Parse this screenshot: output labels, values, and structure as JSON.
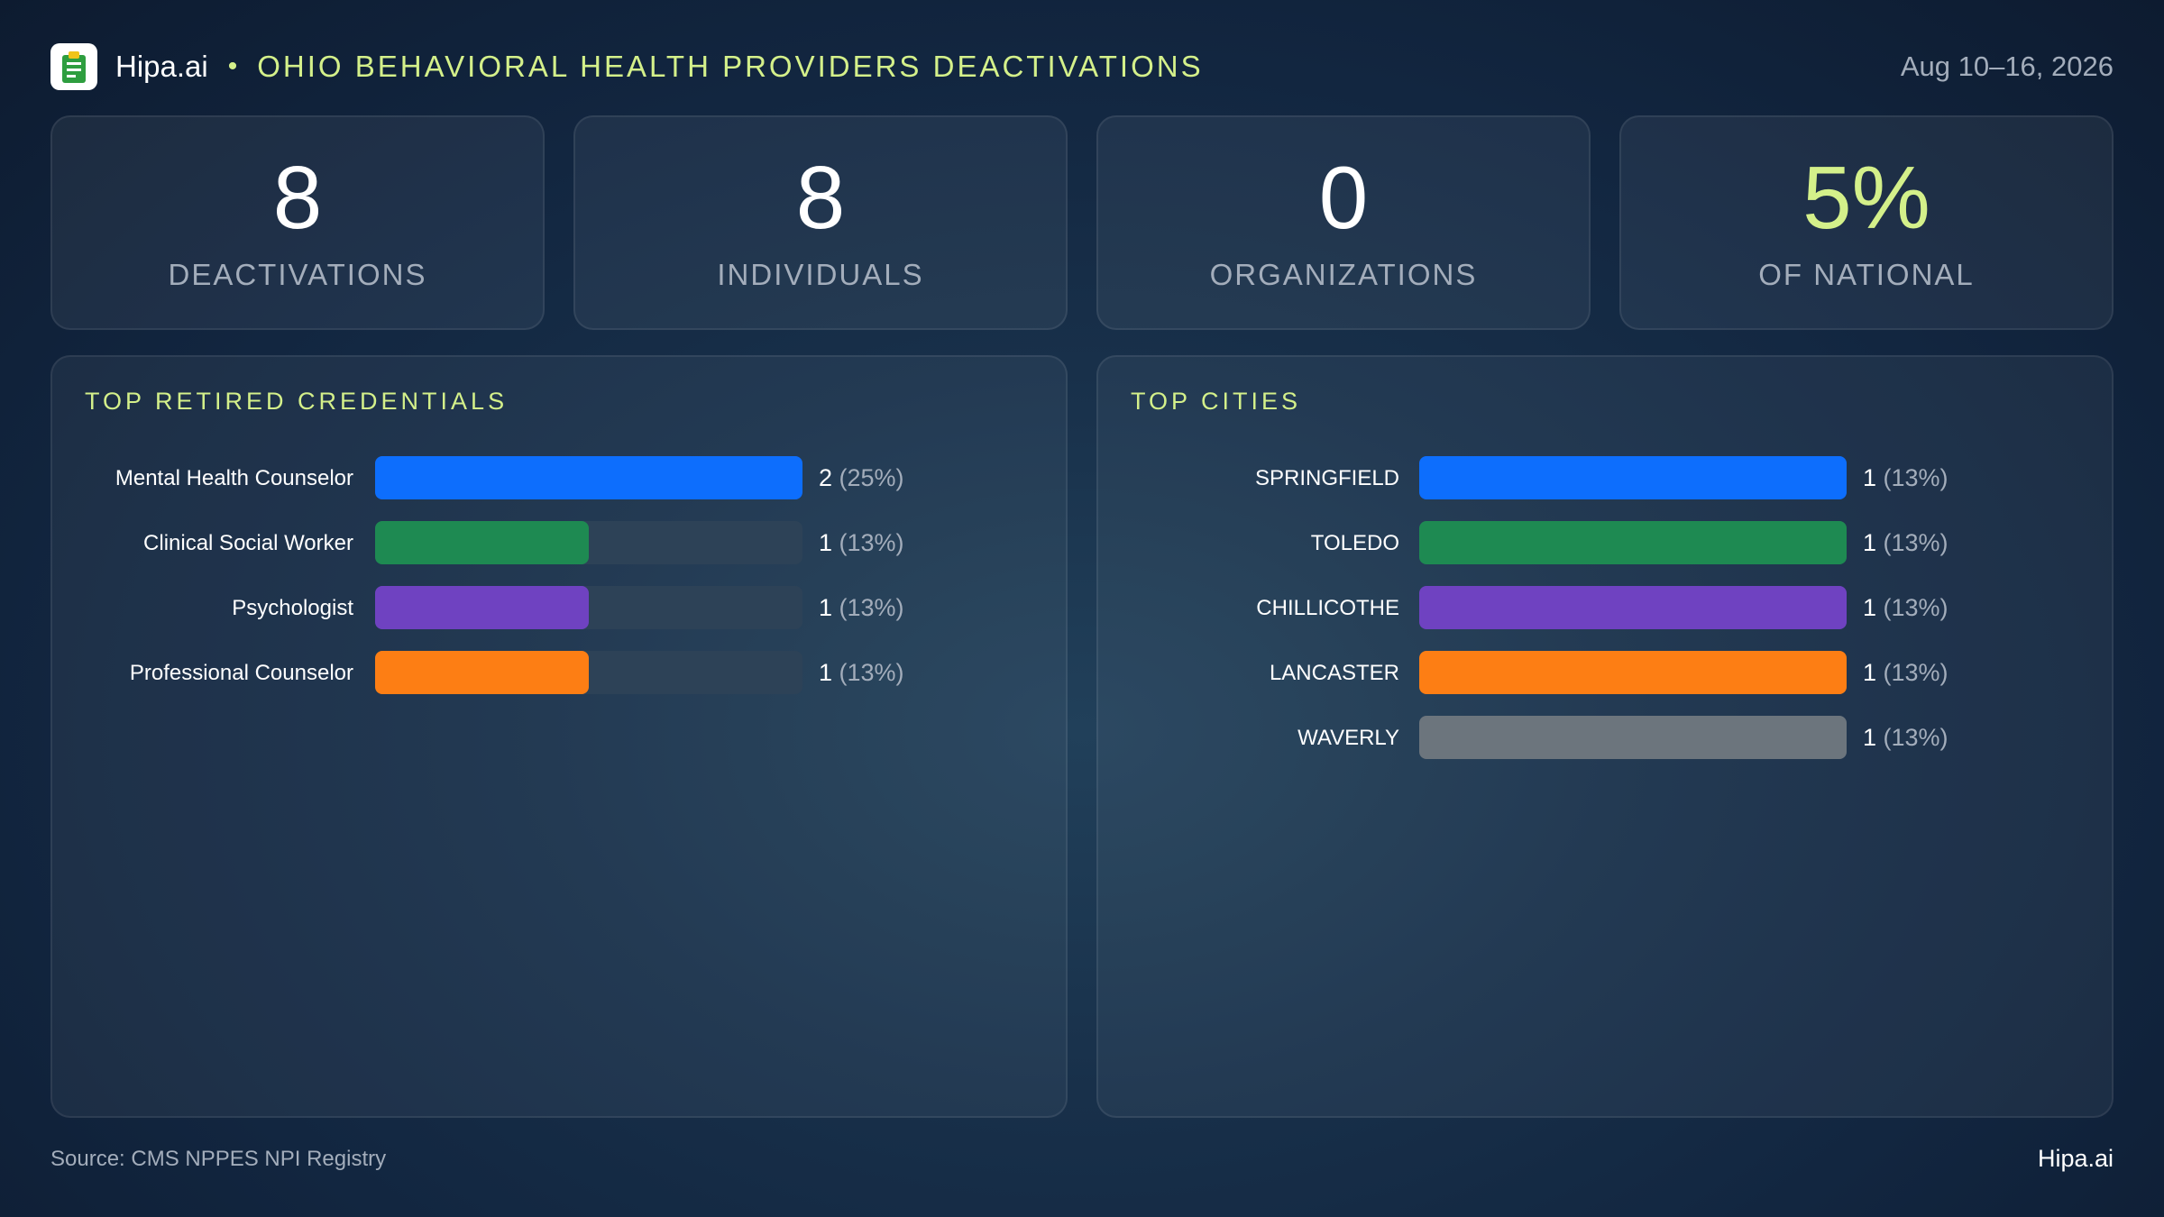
{
  "header": {
    "brand": "Hipa.ai",
    "separator": "•",
    "title": "OHIO BEHAVIORAL HEALTH PROVIDERS DEACTIVATIONS",
    "date": "Aug 10–16, 2026",
    "logo_icon": "clipboard-icon"
  },
  "stats": [
    {
      "value": "8",
      "label": "DEACTIVATIONS"
    },
    {
      "value": "8",
      "label": "INDIVIDUALS"
    },
    {
      "value": "0",
      "label": "ORGANIZATIONS"
    },
    {
      "value": "5%",
      "label": "OF NATIONAL"
    }
  ],
  "colors": {
    "blue": "#0d6efd",
    "green": "#1e8a52",
    "purple": "#6f42c1",
    "orange": "#fd7e14",
    "gray": "#6c757d",
    "accent": "#d4f08a",
    "track": "#2d4257"
  },
  "chart_data": [
    {
      "type": "bar",
      "orientation": "horizontal",
      "title": "TOP RETIRED CREDENTIALS",
      "categories": [
        "Mental Health Counselor",
        "Clinical Social Worker",
        "Psychologist",
        "Professional Counselor"
      ],
      "values": [
        2,
        1,
        1,
        1
      ],
      "labels": [
        {
          "count": "2",
          "pct": "(25%)"
        },
        {
          "count": "1",
          "pct": "(13%)"
        },
        {
          "count": "1",
          "pct": "(13%)"
        },
        {
          "count": "1",
          "pct": "(13%)"
        }
      ],
      "xlim": [
        0,
        2
      ],
      "colors": [
        "#0d6efd",
        "#1e8a52",
        "#6f42c1",
        "#fd7e14"
      ]
    },
    {
      "type": "bar",
      "orientation": "horizontal",
      "title": "TOP CITIES",
      "categories": [
        "SPRINGFIELD",
        "TOLEDO",
        "CHILLICOTHE",
        "LANCASTER",
        "WAVERLY"
      ],
      "values": [
        1,
        1,
        1,
        1,
        1
      ],
      "labels": [
        {
          "count": "1",
          "pct": "(13%)"
        },
        {
          "count": "1",
          "pct": "(13%)"
        },
        {
          "count": "1",
          "pct": "(13%)"
        },
        {
          "count": "1",
          "pct": "(13%)"
        },
        {
          "count": "1",
          "pct": "(13%)"
        }
      ],
      "xlim": [
        0,
        1
      ],
      "colors": [
        "#0d6efd",
        "#1e8a52",
        "#6f42c1",
        "#fd7e14",
        "#6c757d"
      ]
    }
  ],
  "footer": {
    "source": "Source: CMS NPPES NPI Registry",
    "brand": "Hipa.ai"
  }
}
